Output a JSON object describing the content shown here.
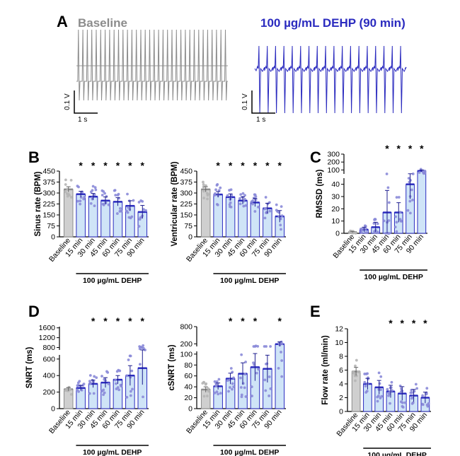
{
  "panel_letters": [
    "A",
    "B",
    "C",
    "D",
    "E"
  ],
  "colors": {
    "baseline": "#8c8c8c",
    "baseline_fill": "#cfcfcf",
    "treated": "#2b2bbf",
    "treated_fill": "#cfe4f7",
    "point": "#8a8ad8",
    "axis": "#000000"
  },
  "traces": {
    "baseline_title": "Baseline",
    "treated_title": "100 µg/mL DEHP (90 min)",
    "volt_label": "0.1 V",
    "time_label": "1 s",
    "baseline_beats": 34,
    "treated_beats": 18
  },
  "group_label": "100 µg/mL DEHP",
  "chart_data": [
    {
      "id": "sinus",
      "type": "bar",
      "ylabel": "Sinus rate (BPM)",
      "categories": [
        "Baseline",
        "15 min",
        "30 min",
        "45 min",
        "60 min",
        "75 min",
        "90 min"
      ],
      "values": [
        325,
        292,
        275,
        248,
        240,
        212,
        170
      ],
      "errors": [
        18,
        20,
        22,
        25,
        28,
        35,
        45
      ],
      "significant": [
        false,
        true,
        true,
        true,
        true,
        true,
        true
      ],
      "yticks": [
        0,
        75,
        150,
        225,
        300,
        375,
        450
      ],
      "ylim": [
        0,
        450
      ]
    },
    {
      "id": "ventricular",
      "type": "bar",
      "ylabel": "Ventricular rate (BPM)",
      "categories": [
        "Baseline",
        "15 min",
        "30 min",
        "45 min",
        "60 min",
        "75 min",
        "90 min"
      ],
      "values": [
        325,
        290,
        272,
        248,
        235,
        195,
        140
      ],
      "errors": [
        18,
        20,
        22,
        25,
        28,
        35,
        40
      ],
      "significant": [
        false,
        true,
        true,
        true,
        true,
        true,
        true
      ],
      "yticks": [
        0,
        75,
        150,
        225,
        300,
        375,
        450
      ],
      "ylim": [
        0,
        450
      ]
    },
    {
      "id": "rmssd",
      "type": "bar",
      "ylabel": "RMSSD (ms)",
      "categories": [
        "Baseline",
        "15 min",
        "30 min",
        "45 min",
        "60 min",
        "75 min",
        "90 min"
      ],
      "values": [
        1,
        3,
        5,
        17,
        17,
        40,
        88
      ],
      "errors": [
        0.5,
        2,
        4,
        18,
        8,
        12,
        12
      ],
      "significant": [
        false,
        false,
        false,
        true,
        true,
        true,
        true
      ],
      "yticks": [
        0,
        10,
        20,
        30,
        40,
        100,
        200,
        300
      ],
      "ylim": [
        0,
        300
      ],
      "broken_axis": {
        "lower": [
          0,
          45
        ],
        "upper": [
          50,
          300
        ]
      }
    },
    {
      "id": "snrt",
      "type": "bar",
      "ylabel": "SNRT (ms)",
      "categories": [
        "Baseline",
        "15 min",
        "30 min",
        "45 min",
        "60 min",
        "75 min",
        "90 min"
      ],
      "values": [
        235,
        250,
        300,
        315,
        350,
        400,
        490
      ],
      "errors": [
        20,
        30,
        45,
        60,
        50,
        120,
        200
      ],
      "significant": [
        false,
        false,
        true,
        true,
        true,
        true,
        true
      ],
      "yticks": [
        0,
        200,
        400,
        600,
        800,
        1200,
        1600
      ],
      "ylim": [
        0,
        1600
      ],
      "broken_axis": {
        "lower": [
          0,
          650
        ],
        "upper": [
          700,
          1650
        ]
      }
    },
    {
      "id": "csnrt",
      "type": "bar",
      "ylabel": "cSNRT (ms)",
      "categories": [
        "Baseline",
        "15 min",
        "30 min",
        "45 min",
        "60 min",
        "75 min",
        "90 min"
      ],
      "values": [
        35,
        41,
        55,
        64,
        76,
        73,
        190
      ],
      "errors": [
        5,
        6,
        10,
        20,
        25,
        25,
        80
      ],
      "significant": [
        false,
        false,
        true,
        true,
        true,
        false,
        true
      ],
      "yticks": [
        0,
        20,
        40,
        60,
        80,
        100,
        200,
        800
      ],
      "ylim": [
        0,
        800
      ],
      "broken_axis": {
        "lower": [
          0,
          105
        ],
        "upper": [
          110,
          800
        ]
      }
    },
    {
      "id": "flow",
      "type": "bar",
      "ylabel": "Flow rate (ml/min)",
      "categories": [
        "Baseline",
        "15 min",
        "30 min",
        "45 min",
        "60 min",
        "75 min",
        "90 min"
      ],
      "values": [
        5.8,
        4.0,
        3.5,
        2.9,
        2.6,
        2.3,
        2.0
      ],
      "errors": [
        0.6,
        0.8,
        1.0,
        0.9,
        1.0,
        0.9,
        0.8
      ],
      "significant": [
        false,
        false,
        false,
        true,
        true,
        true,
        true
      ],
      "yticks": [
        0,
        2,
        4,
        6,
        8,
        10,
        12
      ],
      "ylim": [
        0,
        12
      ]
    }
  ]
}
